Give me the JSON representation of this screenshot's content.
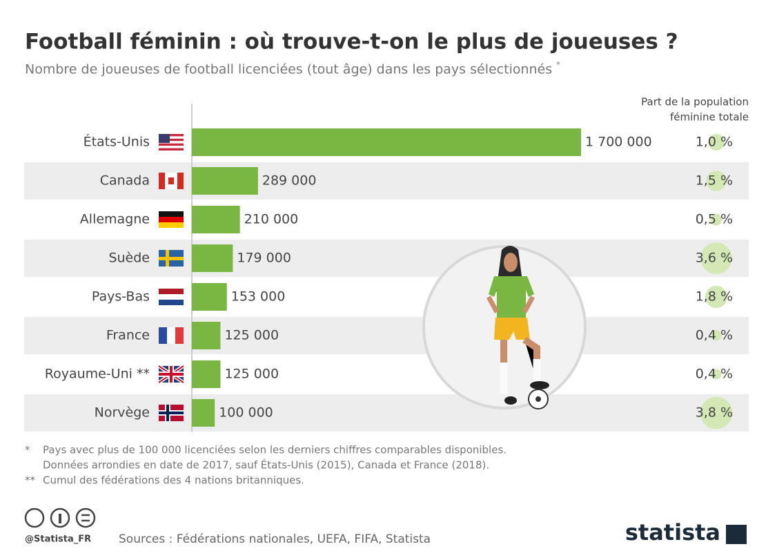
{
  "chart_data": {
    "type": "bar",
    "orientation": "horizontal",
    "title": "Football féminin : où trouve-t-on le plus de joueuses ?",
    "subtitle": "Nombre de joueuses de football licenciées (tout âge) dans les pays sélectionnés",
    "subtitle_mark": "*",
    "categories": [
      "États-Unis",
      "Canada",
      "Allemagne",
      "Suède",
      "Pays-Bas",
      "France",
      "Royaume-Uni **",
      "Norvège"
    ],
    "values": [
      1700000,
      289000,
      210000,
      179000,
      153000,
      125000,
      125000,
      100000
    ],
    "value_labels": [
      "1 700 000",
      "289 000",
      "210 000",
      "179 000",
      "153 000",
      "125 000",
      "125 000",
      "100 000"
    ],
    "color": "#7ab642",
    "share_header": [
      "Part de la population",
      "féminine totale"
    ],
    "share_values": [
      1.0,
      1.5,
      0.5,
      3.6,
      1.8,
      0.4,
      0.4,
      3.8
    ],
    "share_labels": [
      "1,0 %",
      "1,5 %",
      "0,5 %",
      "3,6 %",
      "1,8 %",
      "0,4 %",
      "0,4 %",
      "3,8 %"
    ],
    "share_color": "#d3e8b4",
    "footnotes": [
      {
        "mark": "*",
        "lines": [
          "Pays avec plus de 100 000 licenciées selon les derniers chiffres comparables disponibles.",
          "Données arrondies en date de 2017, sauf États-Unis (2015), Canada et France (2018)."
        ]
      },
      {
        "mark": "**",
        "lines": [
          "Cumul des fédérations des 4 nations britanniques."
        ]
      }
    ],
    "handle": "@Statista_FR",
    "sources": "Sources : Fédérations nationales, UEFA, FIFA, Statista",
    "brand": "statista"
  }
}
